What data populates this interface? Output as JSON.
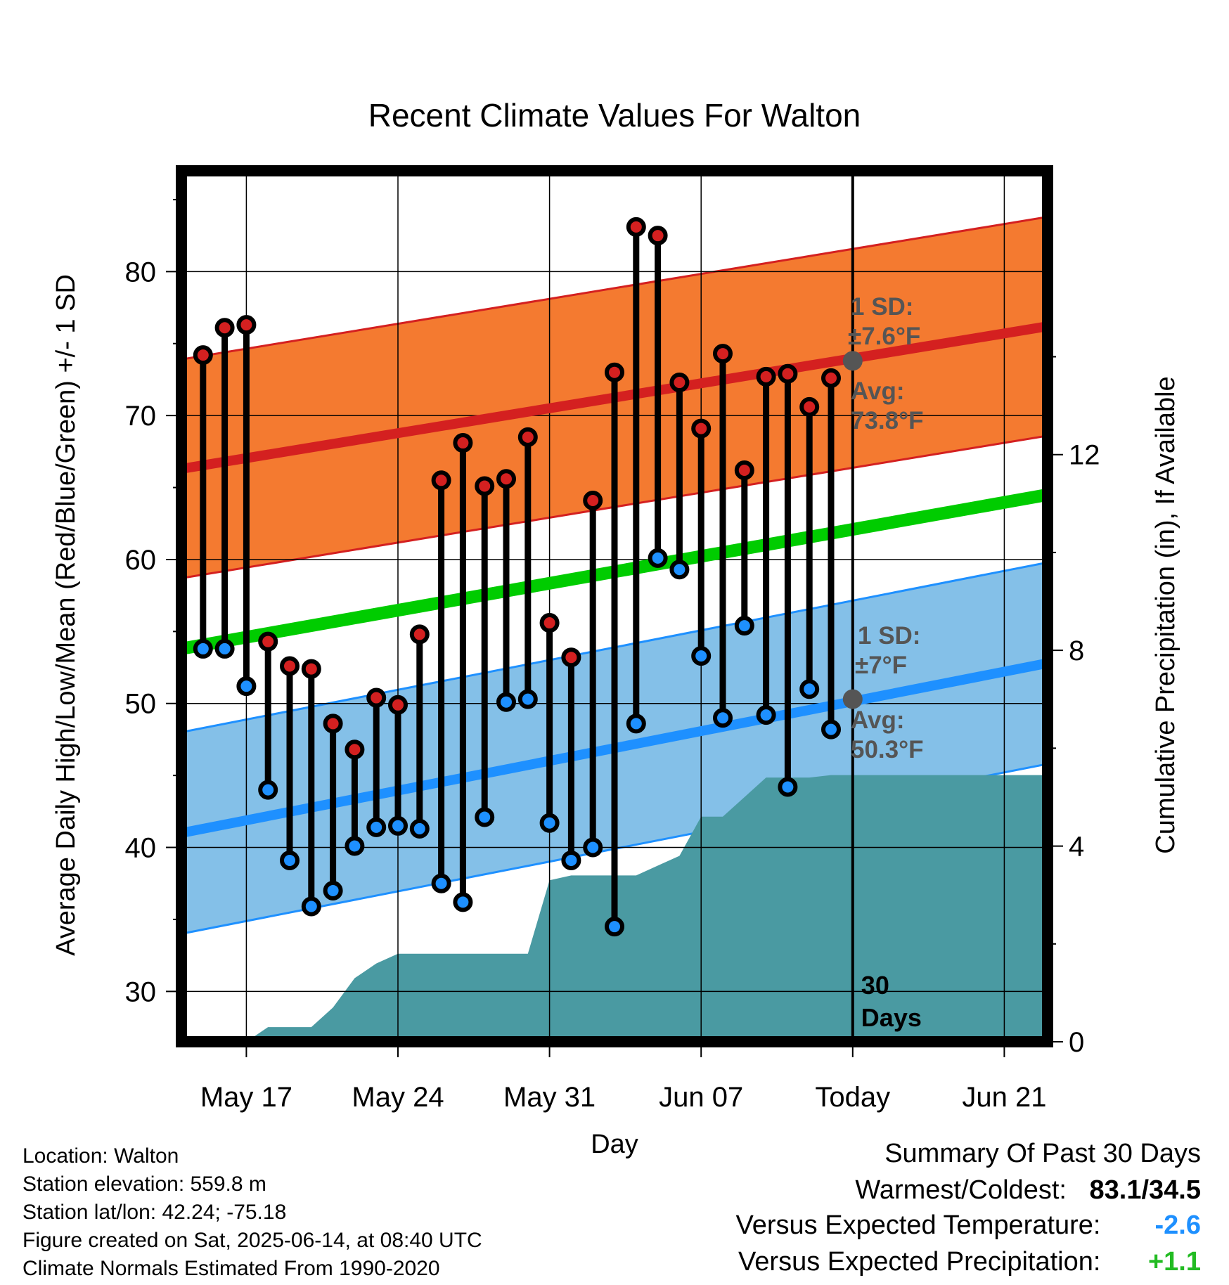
{
  "chart_data": {
    "type": "line",
    "title": "Recent Climate Values For Walton",
    "xlabel": "Day",
    "ylabel": "Average Daily High/Low/Mean (Red/Blue/Green) +/- 1 SD",
    "y2label": "Cumulative Precipitation (in), If Available",
    "x_range": [
      "2025-05-14",
      "2025-06-23"
    ],
    "ylim": [
      26.5,
      87
    ],
    "y2lim": [
      0,
      17.8
    ],
    "yticks": [
      30,
      40,
      50,
      60,
      70,
      80
    ],
    "y2ticks": [
      0,
      4,
      8,
      12
    ],
    "xticks": [
      {
        "date": "2025-05-17",
        "label": "May 17"
      },
      {
        "date": "2025-05-24",
        "label": "May 24"
      },
      {
        "date": "2025-05-31",
        "label": "May 31"
      },
      {
        "date": "2025-06-07",
        "label": "Jun 07"
      },
      {
        "date": "2025-06-14",
        "label": "Today"
      },
      {
        "date": "2025-06-21",
        "label": "Jun 21"
      }
    ],
    "grid": true,
    "today": "2025-06-14",
    "today_label": "30 Days",
    "normal_high": {
      "start": 66.3,
      "end": 76.2,
      "sd": 7.6
    },
    "normal_low": {
      "start": 41.0,
      "end": 52.8,
      "sd": 7.0
    },
    "normal_mean": {
      "start": 53.8,
      "end": 64.5
    },
    "annotations": {
      "high_sd": "1 SD:",
      "high_sd_value": "±7.6°F",
      "high_avg": "Avg:",
      "high_avg_value": "73.8°F",
      "high_avg_today": 73.8,
      "low_sd": "1 SD:",
      "low_sd_value": "±7°F",
      "low_avg": "Avg:",
      "low_avg_value": "50.3°F",
      "low_avg_today": 50.3
    },
    "series": [
      {
        "name": "High",
        "dates": [
          "2025-05-15",
          "2025-05-16",
          "2025-05-17",
          "2025-05-18",
          "2025-05-19",
          "2025-05-20",
          "2025-05-21",
          "2025-05-22",
          "2025-05-23",
          "2025-05-24",
          "2025-05-25",
          "2025-05-26",
          "2025-05-27",
          "2025-05-28",
          "2025-05-29",
          "2025-05-30",
          "2025-05-31",
          "2025-06-01",
          "2025-06-02",
          "2025-06-03",
          "2025-06-04",
          "2025-06-05",
          "2025-06-06",
          "2025-06-07",
          "2025-06-08",
          "2025-06-09",
          "2025-06-10",
          "2025-06-11",
          "2025-06-12",
          "2025-06-13"
        ],
        "values": [
          74.2,
          76.1,
          76.3,
          54.3,
          52.6,
          52.4,
          48.6,
          46.8,
          50.4,
          49.9,
          54.8,
          65.5,
          68.1,
          65.1,
          65.6,
          68.5,
          55.6,
          53.2,
          64.1,
          73.0,
          83.1,
          82.5,
          72.3,
          69.1,
          74.3,
          66.2,
          72.7,
          72.9,
          70.6,
          72.6
        ]
      },
      {
        "name": "Low",
        "dates": [
          "2025-05-15",
          "2025-05-16",
          "2025-05-17",
          "2025-05-18",
          "2025-05-19",
          "2025-05-20",
          "2025-05-21",
          "2025-05-22",
          "2025-05-23",
          "2025-05-24",
          "2025-05-25",
          "2025-05-26",
          "2025-05-27",
          "2025-05-28",
          "2025-05-29",
          "2025-05-30",
          "2025-05-31",
          "2025-06-01",
          "2025-06-02",
          "2025-06-03",
          "2025-06-04",
          "2025-06-05",
          "2025-06-06",
          "2025-06-07",
          "2025-06-08",
          "2025-06-09",
          "2025-06-10",
          "2025-06-11",
          "2025-06-12",
          "2025-06-13"
        ],
        "values": [
          53.8,
          53.8,
          51.2,
          44.0,
          39.1,
          35.9,
          37.0,
          40.1,
          41.4,
          41.5,
          41.3,
          37.5,
          36.2,
          42.1,
          50.1,
          50.3,
          41.7,
          39.1,
          40.0,
          34.5,
          48.6,
          60.1,
          59.3,
          53.3,
          49.0,
          55.4,
          49.2,
          44.2,
          51.0,
          48.2
        ]
      }
    ],
    "precip": {
      "dates": [
        "2025-05-17",
        "2025-05-18",
        "2025-05-19",
        "2025-05-20",
        "2025-05-21",
        "2025-05-22",
        "2025-05-23",
        "2025-05-24",
        "2025-05-25",
        "2025-05-26",
        "2025-05-27",
        "2025-05-28",
        "2025-05-29",
        "2025-05-30",
        "2025-05-31",
        "2025-06-01",
        "2025-06-02",
        "2025-06-03",
        "2025-06-04",
        "2025-06-05",
        "2025-06-06",
        "2025-06-07",
        "2025-06-08",
        "2025-06-09",
        "2025-06-10",
        "2025-06-11",
        "2025-06-12",
        "2025-06-13",
        "2025-06-14",
        "2025-06-23"
      ],
      "values": [
        0.0,
        0.3,
        0.3,
        0.3,
        0.7,
        1.3,
        1.6,
        1.8,
        1.8,
        1.8,
        1.8,
        1.8,
        1.8,
        1.8,
        3.3,
        3.4,
        3.4,
        3.4,
        3.4,
        3.6,
        3.8,
        4.6,
        4.6,
        5.0,
        5.4,
        5.4,
        5.4,
        5.45,
        5.45,
        5.45
      ]
    }
  },
  "info": {
    "location": "Location: Walton",
    "elevation": "Station elevation: 559.8 m",
    "latlon": "Station lat/lon: 42.24; -75.18",
    "created": "Figure created on Sat, 2025-06-14, at 08:40 UTC",
    "normals": "Climate Normals Estimated From 1990-2020"
  },
  "summary": {
    "title": "Summary Of Past 30 Days",
    "warm_cold_label": "Warmest/Coldest:",
    "warm_cold_value": "83.1/34.5",
    "temp_label": "Versus Expected Temperature:",
    "temp_value": "-2.6",
    "temp_color": "#1e90ff",
    "precip_label": "Versus Expected Precipitation:",
    "precip_value": "+1.1",
    "precip_color": "#22bb22"
  },
  "colors": {
    "high_band": "#f47a30",
    "high_line": "#d42020",
    "low_band": "#84c0e8",
    "low_line": "#1e90ff",
    "mean_line": "#00cc00",
    "precip_fill": "#4a9aa2",
    "annotation_text": "#555555",
    "avg_dot": "#555555"
  }
}
